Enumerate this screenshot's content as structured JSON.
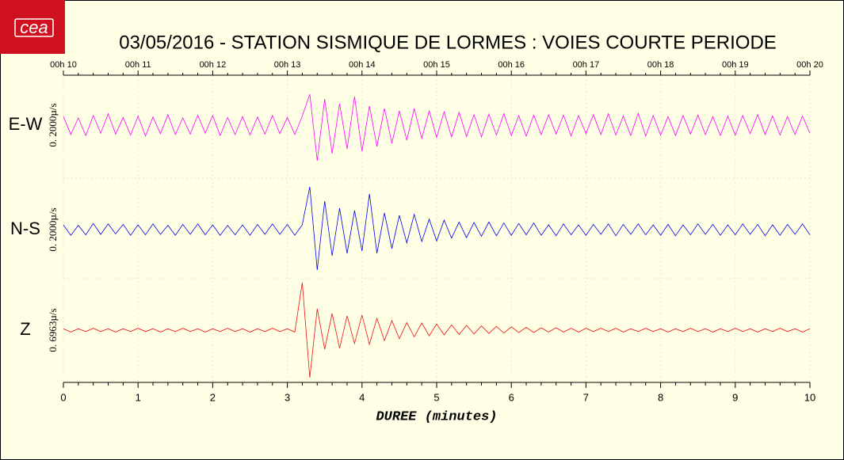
{
  "chart_data": {
    "type": "seismogram",
    "logo": "cea",
    "title": "03/05/2016  -  STATION SISMIQUE DE LORMES : VOIES COURTE PERIODE",
    "xlabel": "DUREE (minutes)",
    "xlim": [
      0,
      10
    ],
    "xticks": [
      0,
      1,
      2,
      3,
      4,
      5,
      6,
      7,
      8,
      9,
      10
    ],
    "top_ticks": [
      {
        "value": 0,
        "label": "00h 10"
      },
      {
        "value": 1,
        "label": "00h 11"
      },
      {
        "value": 2,
        "label": "00h 12"
      },
      {
        "value": 3,
        "label": "00h 13"
      },
      {
        "value": 4,
        "label": "00h 14"
      },
      {
        "value": 5,
        "label": "00h 15"
      },
      {
        "value": 6,
        "label": "00h 16"
      },
      {
        "value": 7,
        "label": "00h 17"
      },
      {
        "value": 8,
        "label": "00h 18"
      },
      {
        "value": 9,
        "label": "00h 19"
      },
      {
        "value": 10,
        "label": "00h 20"
      }
    ],
    "ylim": [
      -1,
      1
    ],
    "grid": true,
    "x": [
      0,
      0.1,
      0.2,
      0.3,
      0.4,
      0.5,
      0.6,
      0.7,
      0.8,
      0.9,
      1,
      1.1,
      1.2,
      1.3,
      1.4,
      1.5,
      1.6,
      1.7,
      1.8,
      1.9,
      2,
      2.1,
      2.2,
      2.3,
      2.4,
      2.5,
      2.6,
      2.7,
      2.8,
      2.9,
      3,
      3.1,
      3.2,
      3.3,
      3.4,
      3.5,
      3.6,
      3.7,
      3.8,
      3.9,
      4,
      4.1,
      4.2,
      4.3,
      4.4,
      4.5,
      4.6,
      4.7,
      4.8,
      4.9,
      5,
      5.1,
      5.2,
      5.3,
      5.4,
      5.5,
      5.6,
      5.7,
      5.8,
      5.9,
      6,
      6.1,
      6.2,
      6.3,
      6.4,
      6.5,
      6.6,
      6.7,
      6.8,
      6.9,
      7,
      7.1,
      7.2,
      7.3,
      7.4,
      7.5,
      7.6,
      7.7,
      7.8,
      7.9,
      8,
      8.1,
      8.2,
      8.3,
      8.4,
      8.5,
      8.6,
      8.7,
      8.8,
      8.9,
      9,
      9.1,
      9.2,
      9.3,
      9.4,
      9.5,
      9.6,
      9.7,
      9.8,
      9.9,
      10
    ],
    "series": [
      {
        "name": "E-W",
        "color": "#ff00ff",
        "scale_label": "0. 2000µ/s",
        "values": [
          0.18,
          -0.2,
          0.15,
          -0.22,
          0.2,
          -0.17,
          0.24,
          -0.19,
          0.16,
          -0.21,
          0.19,
          -0.23,
          0.17,
          -0.18,
          0.22,
          -0.2,
          0.15,
          -0.19,
          0.21,
          -0.17,
          0.2,
          -0.22,
          0.16,
          -0.2,
          0.18,
          -0.21,
          0.17,
          -0.19,
          0.2,
          -0.18,
          0.16,
          -0.2,
          0.19,
          0.65,
          -0.75,
          0.55,
          -0.6,
          0.45,
          -0.5,
          0.6,
          -0.55,
          0.4,
          -0.45,
          0.35,
          -0.38,
          0.3,
          -0.32,
          0.35,
          -0.28,
          0.3,
          -0.26,
          0.28,
          -0.25,
          0.27,
          -0.24,
          0.22,
          -0.25,
          0.23,
          -0.21,
          0.24,
          -0.22,
          0.2,
          -0.23,
          0.21,
          -0.2,
          0.22,
          -0.19,
          0.21,
          -0.23,
          0.2,
          -0.18,
          0.22,
          -0.2,
          0.24,
          -0.21,
          0.19,
          -0.22,
          0.25,
          -0.23,
          0.2,
          -0.21,
          0.18,
          -0.22,
          0.2,
          -0.19,
          0.21,
          -0.2,
          0.18,
          -0.22,
          0.19,
          -0.21,
          0.2,
          -0.18,
          0.22,
          -0.2,
          0.19,
          -0.21,
          0.18,
          -0.2,
          0.19,
          -0.17
        ]
      },
      {
        "name": "N-S",
        "color": "#0000ee",
        "scale_label": "0. 2000µ/s",
        "values": [
          0.1,
          -0.12,
          0.09,
          -0.11,
          0.13,
          -0.1,
          0.12,
          -0.09,
          0.11,
          -0.12,
          0.1,
          -0.11,
          0.12,
          -0.1,
          0.09,
          -0.12,
          0.11,
          -0.1,
          0.12,
          -0.11,
          0.1,
          -0.12,
          0.09,
          -0.11,
          0.1,
          -0.12,
          0.11,
          -0.1,
          0.12,
          -0.1,
          0.11,
          -0.12,
          0.1,
          0.9,
          -0.85,
          0.6,
          -0.55,
          0.45,
          -0.5,
          0.4,
          -0.45,
          0.75,
          -0.5,
          0.35,
          -0.4,
          0.3,
          -0.28,
          0.32,
          -0.25,
          0.22,
          -0.24,
          0.2,
          -0.18,
          0.16,
          -0.17,
          0.15,
          -0.14,
          0.16,
          -0.13,
          0.14,
          -0.12,
          0.13,
          -0.11,
          0.14,
          -0.12,
          0.1,
          -0.13,
          0.12,
          -0.11,
          0.1,
          -0.12,
          0.11,
          -0.1,
          0.12,
          -0.13,
          0.11,
          -0.1,
          0.12,
          -0.11,
          0.1,
          -0.12,
          0.11,
          -0.13,
          0.1,
          -0.11,
          0.12,
          -0.1,
          0.11,
          -0.12,
          0.1,
          -0.11,
          0.12,
          -0.1,
          0.11,
          -0.13,
          0.1,
          -0.12,
          0.11,
          -0.1,
          0.12,
          -0.11
        ]
      },
      {
        "name": "Z",
        "color": "#ee1111",
        "scale_label": "0. 6963µ/s",
        "values": [
          0.03,
          -0.04,
          0.03,
          -0.03,
          0.04,
          -0.03,
          0.03,
          -0.04,
          0.03,
          -0.03,
          0.04,
          -0.03,
          0.03,
          -0.04,
          0.03,
          -0.03,
          0.04,
          -0.03,
          0.03,
          -0.04,
          0.03,
          -0.03,
          0.04,
          -0.03,
          0.03,
          -0.04,
          0.03,
          -0.03,
          0.04,
          -0.03,
          0.03,
          -0.04,
          1.0,
          -1.0,
          0.45,
          -0.4,
          0.35,
          -0.38,
          0.3,
          -0.28,
          0.32,
          -0.3,
          0.25,
          -0.22,
          0.2,
          -0.18,
          0.16,
          -0.14,
          0.15,
          -0.12,
          0.13,
          -0.1,
          0.11,
          -0.09,
          0.1,
          -0.08,
          0.09,
          -0.07,
          0.08,
          -0.06,
          0.07,
          -0.05,
          0.06,
          -0.05,
          0.05,
          -0.04,
          0.05,
          -0.04,
          0.04,
          -0.04,
          0.04,
          -0.03,
          0.04,
          -0.03,
          0.04,
          -0.04,
          0.03,
          -0.03,
          0.04,
          -0.03,
          0.03,
          -0.04,
          0.03,
          -0.03,
          0.04,
          -0.03,
          0.03,
          -0.04,
          0.03,
          -0.03,
          0.04,
          -0.03,
          0.03,
          -0.04,
          0.03,
          -0.03,
          0.04,
          -0.03,
          0.03,
          -0.04,
          0.03
        ]
      }
    ]
  }
}
